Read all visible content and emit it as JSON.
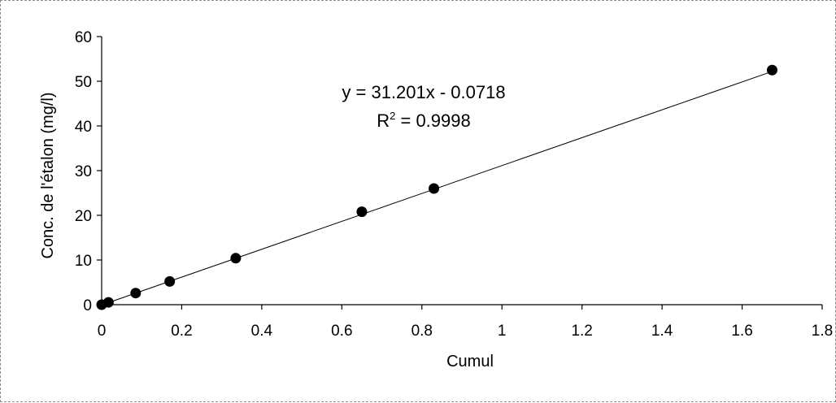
{
  "chart_data": {
    "type": "scatter",
    "title": "",
    "xlabel": "Cumul",
    "ylabel": "Conc. de l'étalon (mg/l)",
    "xlim": [
      0,
      1.8
    ],
    "ylim": [
      0,
      60
    ],
    "x_ticks": [
      "0",
      "0.2",
      "0.4",
      "0.6",
      "0.8",
      "1",
      "1.2",
      "1.4",
      "1.6",
      "1.8"
    ],
    "y_ticks": [
      "0",
      "10",
      "20",
      "30",
      "40",
      "50",
      "60"
    ],
    "grid": false,
    "legend": "none",
    "series": [
      {
        "points": [
          {
            "x": 0.0,
            "y": 0.0
          },
          {
            "x": 0.017,
            "y": 0.52
          },
          {
            "x": 0.085,
            "y": 2.6
          },
          {
            "x": 0.17,
            "y": 5.2
          },
          {
            "x": 0.335,
            "y": 10.4
          },
          {
            "x": 0.65,
            "y": 20.8
          },
          {
            "x": 0.83,
            "y": 26.0
          },
          {
            "x": 1.675,
            "y": 52.5
          }
        ],
        "marker_color": "#000000"
      }
    ],
    "trendline": {
      "type": "linear",
      "slope": 31.201,
      "intercept": -0.0718,
      "color": "#000000"
    },
    "annotations": {
      "equation": "y = 31.201x - 0.0718",
      "r2_prefix": "R",
      "r2_sup": "2",
      "r2_value": " = 0.9998"
    }
  }
}
